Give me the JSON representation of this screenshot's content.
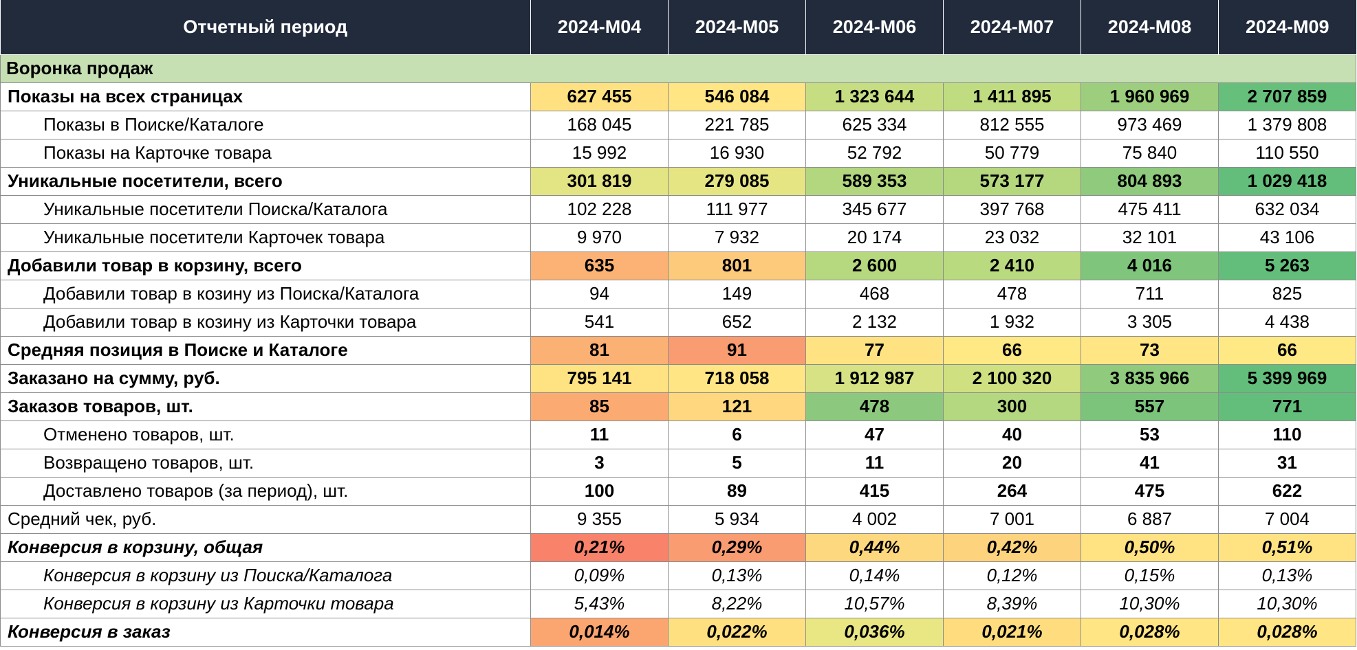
{
  "colors": {
    "header_bg": "#222B3C",
    "header_text": "#FFFFFF",
    "section_bg": "#C6E0B4",
    "grid_line": "#8C8C8C",
    "scale_min_color": "#F8696B",
    "scale_mid_color": "#FFEB84",
    "scale_max_color": "#63BE7B"
  },
  "chart_data": {
    "type": "table",
    "title": "Воронка продаж",
    "corner_label": "Отчетный период",
    "section_title": "Воронка продаж",
    "columns": [
      "2024-M04",
      "2024-M05",
      "2024-M06",
      "2024-M07",
      "2024-M08",
      "2024-M09"
    ],
    "rows": [
      {
        "label": "Показы на всех страницах",
        "indent": 0,
        "label_em": "bold",
        "value_em": "bold",
        "values": [
          "627 455",
          "546 084",
          "1 323 644",
          "1 411 895",
          "1 960 969",
          "2 707 859"
        ],
        "cell_colors": [
          "#FFE182",
          "#FFE583",
          "#C6DE81",
          "#C0DC80",
          "#9CCE7E",
          "#66BF7B"
        ]
      },
      {
        "label": "Показы в Поиске/Каталоге",
        "indent": 1,
        "label_em": "normal",
        "value_em": "normal",
        "values": [
          "168 045",
          "221 785",
          "625 334",
          "812 555",
          "973 469",
          "1 379 808"
        ],
        "cell_colors": [
          "",
          "",
          "",
          "",
          "",
          ""
        ]
      },
      {
        "label": "Показы на Карточке товара",
        "indent": 1,
        "label_em": "normal",
        "value_em": "normal",
        "values": [
          "15 992",
          "16 930",
          "52 792",
          "50 779",
          "75 840",
          "110 550"
        ],
        "cell_colors": [
          "",
          "",
          "",
          "",
          "",
          ""
        ]
      },
      {
        "label": "Уникальные посетители, всего",
        "indent": 0,
        "label_em": "bold",
        "value_em": "bold",
        "values": [
          "301 819",
          "279 085",
          "589 353",
          "573 177",
          "804 893",
          "1 029 418"
        ],
        "cell_colors": [
          "#E3E483",
          "#E6E584",
          "#B2D77F",
          "#B5D87F",
          "#8FCA7D",
          "#63BE7B"
        ]
      },
      {
        "label": "Уникальные посетители Поиска/Каталога",
        "indent": 1,
        "label_em": "normal",
        "value_em": "normal",
        "values": [
          "102 228",
          "111 977",
          "345 677",
          "397 768",
          "475 411",
          "632 034"
        ],
        "cell_colors": [
          "",
          "",
          "",
          "",
          "",
          ""
        ]
      },
      {
        "label": "Уникальные посетители Карточек товара",
        "indent": 1,
        "label_em": "normal",
        "value_em": "normal",
        "values": [
          "9 970",
          "7 932",
          "20 174",
          "23 032",
          "32 101",
          "43 106"
        ],
        "cell_colors": [
          "",
          "",
          "",
          "",
          "",
          ""
        ]
      },
      {
        "label": "Добавили товар в корзину, всего",
        "indent": 0,
        "label_em": "bold",
        "value_em": "bold",
        "values": [
          "635",
          "801",
          "2 600",
          "2 410",
          "4 016",
          "5 263"
        ],
        "cell_colors": [
          "#FBB274",
          "#FDC97B",
          "#B6D97F",
          "#BADA80",
          "#80C57C",
          "#63BE7B"
        ]
      },
      {
        "label": "Добавили товар в козину из Поиска/Каталога",
        "indent": 1,
        "label_em": "normal",
        "value_em": "normal",
        "values": [
          "94",
          "149",
          "468",
          "478",
          "711",
          "825"
        ],
        "cell_colors": [
          "",
          "",
          "",
          "",
          "",
          ""
        ]
      },
      {
        "label": "Добавили товар в козину из Карточки товара",
        "indent": 1,
        "label_em": "normal",
        "value_em": "normal",
        "values": [
          "541",
          "652",
          "2 132",
          "1 932",
          "3 305",
          "4 438"
        ],
        "cell_colors": [
          "",
          "",
          "",
          "",
          "",
          ""
        ]
      },
      {
        "label": "Средняя позиция в Поиске и Каталоге",
        "indent": 0,
        "label_em": "bold",
        "value_em": "bold",
        "values": [
          "81",
          "91",
          "77",
          "66",
          "73",
          "66"
        ],
        "cell_colors": [
          "#FBB074",
          "#FA9C71",
          "#FFE383",
          "#FFE984",
          "#FFE583",
          "#FFE984"
        ]
      },
      {
        "label": "Заказано на сумму, руб.",
        "indent": 0,
        "label_em": "bold",
        "value_em": "bold",
        "values": [
          "795 141",
          "718 058",
          "1 912 987",
          "2 100 320",
          "3 835 966",
          "5 399 969"
        ],
        "cell_colors": [
          "#FFE282",
          "#FFE583",
          "#D6E283",
          "#CFE081",
          "#8FCA7D",
          "#63BE7B"
        ]
      },
      {
        "label": "Заказов товаров, шт.",
        "indent": 0,
        "label_em": "bold",
        "value_em": "bold",
        "values": [
          "85",
          "121",
          "478",
          "300",
          "557",
          "771"
        ],
        "cell_colors": [
          "#FBAB72",
          "#FED77E",
          "#8CC87D",
          "#B4D87F",
          "#7CC47C",
          "#63BE7B"
        ]
      },
      {
        "label": "Отменено товаров, шт.",
        "indent": 1,
        "label_em": "normal",
        "value_em": "bold",
        "values": [
          "11",
          "6",
          "47",
          "40",
          "53",
          "110"
        ],
        "cell_colors": [
          "",
          "",
          "",
          "",
          "",
          ""
        ]
      },
      {
        "label": "Возвращено товаров, шт.",
        "indent": 1,
        "label_em": "normal",
        "value_em": "bold",
        "values": [
          "3",
          "5",
          "11",
          "20",
          "41",
          "31"
        ],
        "cell_colors": [
          "",
          "",
          "",
          "",
          "",
          ""
        ]
      },
      {
        "label": "Доставлено товаров (за период), шт.",
        "indent": 1,
        "label_em": "normal",
        "value_em": "bold",
        "values": [
          "100",
          "89",
          "415",
          "264",
          "475",
          "622"
        ],
        "cell_colors": [
          "",
          "",
          "",
          "",
          "",
          ""
        ]
      },
      {
        "label": "Средний чек, руб.",
        "indent": 0,
        "label_em": "normal",
        "value_em": "normal",
        "values": [
          "9 355",
          "5 934",
          "4 002",
          "7 001",
          "6 887",
          "7 004"
        ],
        "cell_colors": [
          "",
          "",
          "",
          "",
          "",
          ""
        ]
      },
      {
        "label": "Конверсия в корзину, общая",
        "indent": 0,
        "label_em": "bold-italic",
        "value_em": "bold-italic",
        "values": [
          "0,21%",
          "0,29%",
          "0,44%",
          "0,42%",
          "0,50%",
          "0,51%"
        ],
        "cell_colors": [
          "#F8826A",
          "#FA9C72",
          "#FED87E",
          "#FED37D",
          "#FFE282",
          "#FFE383"
        ]
      },
      {
        "label": "Конверсия в корзину из Поиска/Каталога",
        "indent": 1,
        "label_em": "italic",
        "value_em": "italic",
        "values": [
          "0,09%",
          "0,13%",
          "0,14%",
          "0,12%",
          "0,15%",
          "0,13%"
        ],
        "cell_colors": [
          "",
          "",
          "",
          "",
          "",
          ""
        ]
      },
      {
        "label": "Конверсия в корзину из Карточки товара",
        "indent": 1,
        "label_em": "italic",
        "value_em": "italic",
        "values": [
          "5,43%",
          "8,22%",
          "10,57%",
          "8,39%",
          "10,30%",
          "10,30%"
        ],
        "cell_colors": [
          "",
          "",
          "",
          "",
          "",
          ""
        ]
      },
      {
        "label": "Конверсия в заказ",
        "indent": 0,
        "label_em": "bold-italic",
        "value_em": "bold-italic",
        "values": [
          "0,014%",
          "0,022%",
          "0,036%",
          "0,021%",
          "0,028%",
          "0,028%"
        ],
        "cell_colors": [
          "#FBA671",
          "#FFE081",
          "#E9E784",
          "#FFDD7F",
          "#FFE583",
          "#FFE583"
        ]
      }
    ]
  }
}
